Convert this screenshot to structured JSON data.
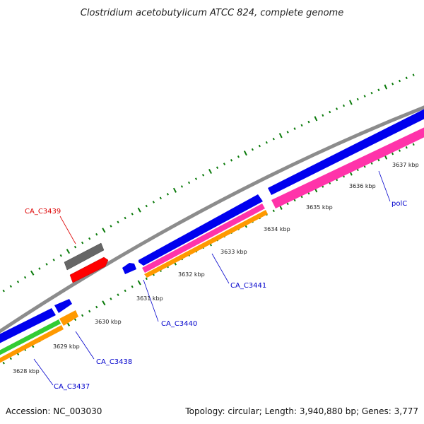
{
  "title": "Clostridium acetobutylicum ATCC 824, complete genome",
  "footer": {
    "accession": "Accession: NC_003030",
    "summary": "Topology: circular; Length: 3,940,880 bp; Genes: 3,777"
  },
  "colors": {
    "backbone": "#8c8c8c",
    "blue": "#0000ee",
    "gray": "#666666",
    "red": "#ff0000",
    "pink": "#ff33aa",
    "orange": "#ff9900",
    "green": "#33cc33",
    "ticks": "#0a7a0a",
    "label_blue": "#0000cc",
    "label_red": "#dd0000"
  },
  "kbp_labels": [
    "3628 kbp",
    "3629 kbp",
    "3630 kbp",
    "3631 kbp",
    "3632 kbp",
    "3633 kbp",
    "3634 kbp",
    "3635 kbp",
    "3636 kbp",
    "3637 kbp"
  ],
  "gene_labels": {
    "CA_C3439": "CA_C3439",
    "CA_C3440": "CA_C3440",
    "CA_C3438": "CA_C3438",
    "CA_C3437": "CA_C3437",
    "CA_C3441": "CA_C3441",
    "polC": "polC"
  }
}
